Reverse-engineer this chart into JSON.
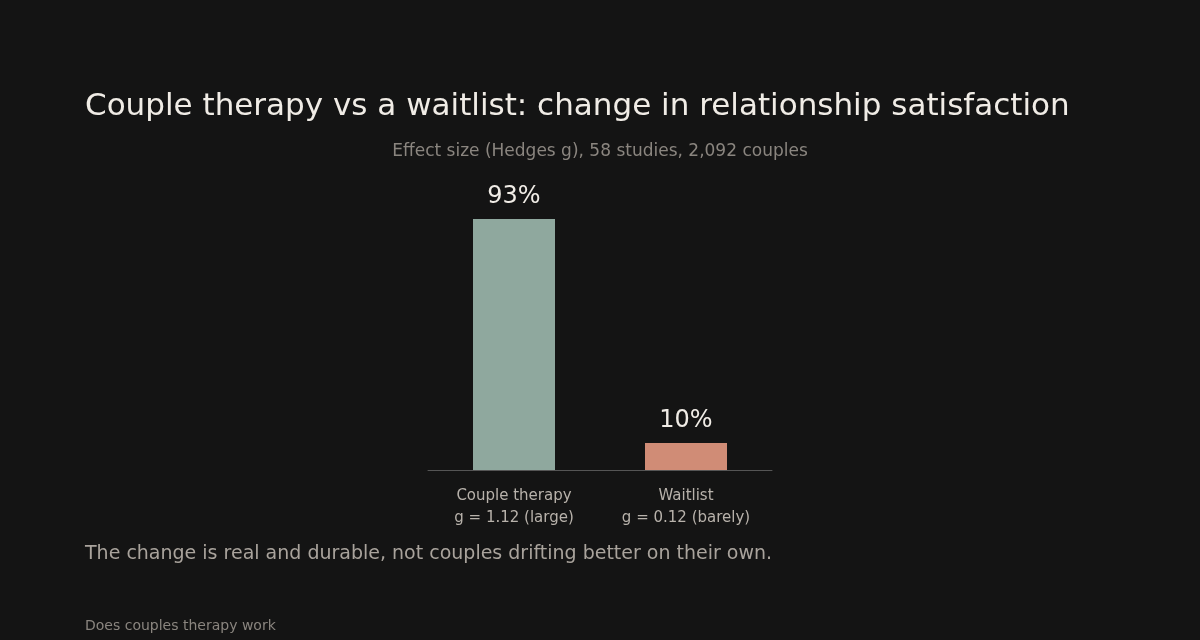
{
  "chart_data": {
    "type": "bar",
    "title": "Couple therapy vs a waitlist: change in relationship satisfaction",
    "subtitle": "Effect size (Hedges g), 58 studies, 2,092 couples",
    "categories": [
      "Couple therapy\ng = 1.12 (large)",
      "Waitlist\ng = 0.12 (barely)"
    ],
    "values": [
      93,
      10
    ],
    "colors": [
      "#8fa89e",
      "#d08c76"
    ],
    "value_labels": [
      "93%",
      "10%"
    ],
    "tick_labels": "x",
    "annotations": [
      "The change is real and durable, not couples drifting better on their own.",
      "Does couples therapy work"
    ]
  }
}
